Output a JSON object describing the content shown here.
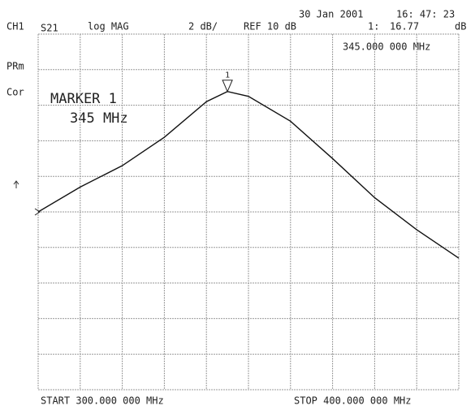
{
  "chart_data": {
    "type": "line",
    "channel": "CH1",
    "parameter": "S21",
    "format": "log MAG",
    "scale": "2 dB/",
    "reference": "REF 10 dB",
    "date": "30 Jan 2001",
    "time": "16: 47: 23",
    "marker_readout_label": "1:",
    "marker_readout_unit": "dB",
    "marker_frequency": "345.000 000 MHz",
    "status_1": "PRm",
    "status_2": "Cor",
    "annotation_1": "MARKER 1",
    "annotation_2": "345 MHz",
    "start_label": "START 300.000 000 MHz",
    "stop_label": "STOP 400.000 000 MHz",
    "xlim": [
      300,
      400
    ],
    "ylim": [
      0,
      20
    ],
    "xticks": [
      300,
      310,
      320,
      330,
      340,
      350,
      360,
      370,
      380,
      390,
      400
    ],
    "yticks": [
      0,
      2,
      4,
      6,
      8,
      10,
      12,
      14,
      16,
      18,
      20
    ],
    "grid": true,
    "series": [
      {
        "color": "#111111",
        "x": [
          300,
          310,
          320,
          330,
          340,
          345,
          350,
          360,
          370,
          380,
          390,
          400
        ],
        "values": [
          10.0,
          11.4,
          12.6,
          14.2,
          16.2,
          16.77,
          16.5,
          15.1,
          13.0,
          10.8,
          9.0,
          7.4
        ]
      }
    ],
    "marker": {
      "label": "1",
      "x": 345,
      "value": 16.77
    }
  }
}
